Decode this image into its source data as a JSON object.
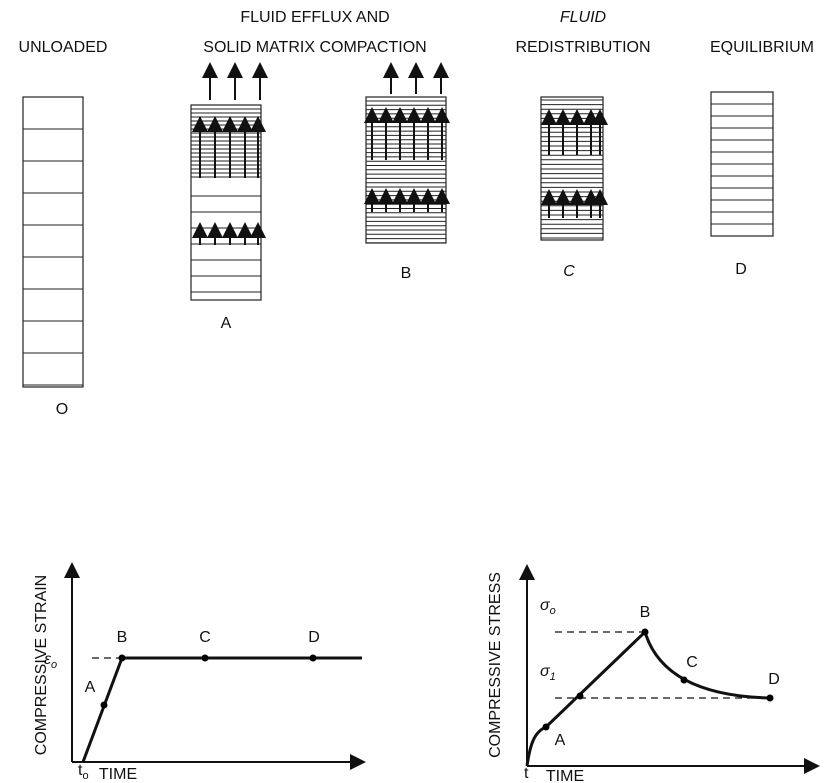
{
  "panels": {
    "headers": {
      "unloaded": "UNLOADED",
      "efflux_line1": "FLUID EFFLUX AND",
      "efflux_line2": "SOLID MATRIX COMPACTION",
      "redistribution_line1": "FLUID",
      "redistribution_line2": "REDISTRIBUTION",
      "equilibrium": "EQUILIBRIUM"
    },
    "labels": [
      "O",
      "A",
      "B",
      "C",
      "D"
    ]
  },
  "strain_graph": {
    "y_label": "COMPRESSIVE STRAIN",
    "x_label": "TIME",
    "level_label": {
      "symbol": "ε",
      "subscript": "o"
    },
    "time_label": {
      "symbol": "t",
      "subscript": "o"
    },
    "points": [
      "A",
      "B",
      "C",
      "D"
    ]
  },
  "stress_graph": {
    "y_label": "COMPRESSIVE STRESS",
    "x_label": "TIME",
    "peak_label": {
      "symbol": "σ",
      "subscript": "o"
    },
    "equilibrium_label": {
      "symbol": "σ",
      "subscript": "1"
    },
    "time_label": "t",
    "points": [
      "A",
      "B",
      "C",
      "D"
    ]
  }
}
